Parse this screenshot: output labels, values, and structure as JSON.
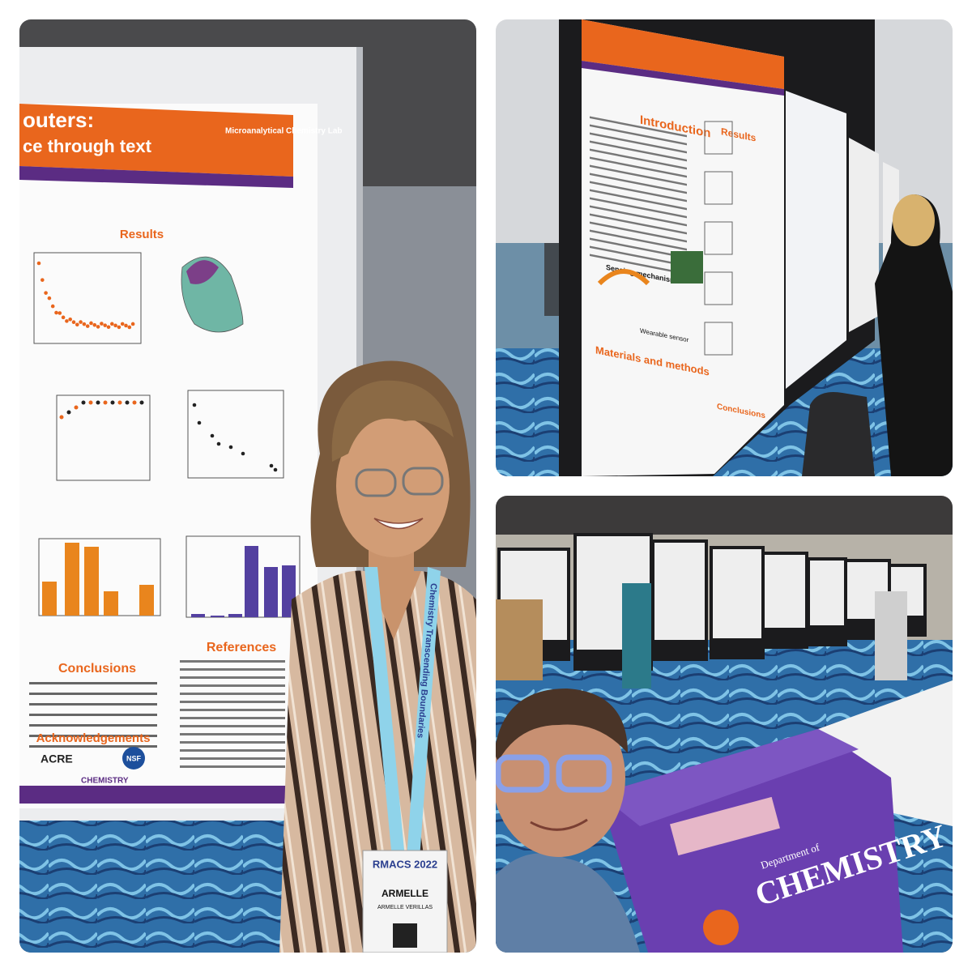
{
  "left_photo": {
    "poster_title_1": "outers:",
    "poster_title_2": "ce through text",
    "lab_logo": "Microanalytical Chemistry Lab",
    "results": "Results",
    "conclusions": "Conclusions",
    "references": "References",
    "acknowledgements": "Acknowledgements",
    "acre_logo": "ACRE",
    "nsf_logo": "NSF",
    "chemistry_logo": "CHEMISTRY",
    "lanyard": "Chemistry Transcending Boundaries",
    "badge_event": "RMACS 2022",
    "badge_name": "ARMELLE",
    "badge_full_name": "ARMELLE VERILLAS"
  },
  "top_right_photo": {
    "introduction": "Introduction",
    "results": "Results",
    "sensing_mechanism": "Sensing mechanism",
    "wearable_sensor": "Wearable sensor",
    "materials_and_methods": "Materials and methods",
    "conclusions": "Conclusions"
  },
  "bottom_right_photo": {
    "banner_line_1": "Department of",
    "banner_line_2": "CHEMISTRY"
  }
}
